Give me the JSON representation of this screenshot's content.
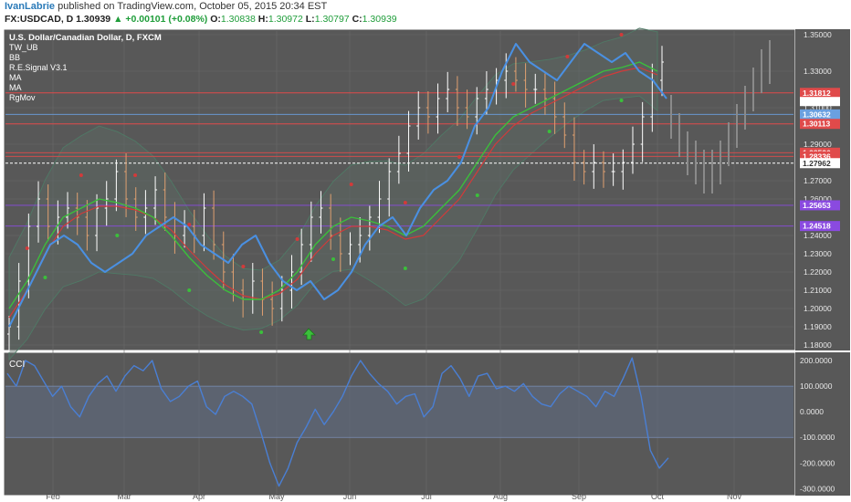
{
  "header": {
    "author": "IvanLabrie",
    "published": " published on TradingView.com, October 05, 2015 20:34 EST",
    "symbol": "FX:USDCAD, D",
    "price": "1.30939",
    "change_arrow": "▲",
    "change": "+0.00101 (+0.08%)",
    "open_label": "O:",
    "open": "1.30838",
    "high_label": "H:",
    "high": "1.30972",
    "low_label": "L:",
    "low": "1.30797",
    "close_label": "C:",
    "close": "1.30939"
  },
  "legend": [
    "U.S. Dollar/Canadian Dollar, D, FXCM",
    "TW_UB",
    "BB",
    "R.E.Signal V3.1",
    "MA",
    "MA",
    "RgMov"
  ],
  "colors": {
    "panel_bg": "#585858",
    "frame": "#ffffff",
    "grid": "#6a6a6a",
    "price_line": "#4a90e2",
    "ma_green": "#3bbf3b",
    "ma_red": "#d23a3a",
    "bb": "#4f7a66",
    "cci": "#4a7fd4",
    "cci_band": "#5f6b80",
    "candle_up": "#ffffff",
    "candle_down": "#e0a070",
    "hline_red": "#e04a4a",
    "hline_purple": "#8a4ae0",
    "hline_blue": "#6aa0e0"
  },
  "chart_data": [
    {
      "type": "candlestick",
      "title": "U.S. Dollar/Canadian Dollar, D, FXCM",
      "x_ticks": [
        "Feb",
        "Mar",
        "Apr",
        "May",
        "Jun",
        "Jul",
        "Aug",
        "Sep",
        "Oct",
        "Nov"
      ],
      "y_ticks": [
        "1.35000",
        "1.33000",
        "1.31000",
        "1.29000",
        "1.27000",
        "1.26000",
        "1.24000",
        "1.23000",
        "1.22000",
        "1.21000",
        "1.20000",
        "1.19000",
        "1.18000"
      ],
      "ylim": [
        1.178,
        1.352
      ],
      "close_series": [
        1.19,
        1.215,
        1.245,
        1.26,
        1.245,
        1.25,
        1.255,
        1.25,
        1.24,
        1.255,
        1.26,
        1.275,
        1.26,
        1.25,
        1.255,
        1.265,
        1.25,
        1.24,
        1.245,
        1.24,
        1.255,
        1.235,
        1.22,
        1.21,
        1.205,
        1.215,
        1.205,
        1.2,
        1.21,
        1.22,
        1.235,
        1.25,
        1.255,
        1.24,
        1.23,
        1.235,
        1.24,
        1.25,
        1.26,
        1.275,
        1.285,
        1.3,
        1.31,
        1.305,
        1.315,
        1.32,
        1.31,
        1.305,
        1.315,
        1.32,
        1.325,
        1.33,
        1.325,
        1.32,
        1.32,
        1.315,
        1.305,
        1.295,
        1.28,
        1.275,
        1.28,
        1.275,
        1.275,
        1.28,
        1.29,
        1.305,
        1.325,
        1.335
      ],
      "price_line": [
        1.19,
        1.205,
        1.22,
        1.235,
        1.24,
        1.235,
        1.225,
        1.22,
        1.225,
        1.23,
        1.24,
        1.245,
        1.25,
        1.245,
        1.235,
        1.23,
        1.225,
        1.235,
        1.24,
        1.225,
        1.215,
        1.21,
        1.215,
        1.205,
        1.21,
        1.22,
        1.235,
        1.245,
        1.25,
        1.24,
        1.255,
        1.265,
        1.27,
        1.28,
        1.3,
        1.31,
        1.33,
        1.345,
        1.335,
        1.33,
        1.325,
        1.335,
        1.345,
        1.34,
        1.335,
        1.34,
        1.33,
        1.325,
        1.315
      ],
      "ma_green": [
        1.2,
        1.215,
        1.235,
        1.25,
        1.255,
        1.26,
        1.258,
        1.255,
        1.25,
        1.24,
        1.228,
        1.218,
        1.21,
        1.205,
        1.205,
        1.21,
        1.22,
        1.235,
        1.245,
        1.25,
        1.248,
        1.245,
        1.24,
        1.245,
        1.255,
        1.265,
        1.28,
        1.295,
        1.305,
        1.31,
        1.315,
        1.32,
        1.325,
        1.33,
        1.332,
        1.335,
        1.33
      ],
      "ma_red": [
        1.195,
        1.21,
        1.23,
        1.245,
        1.252,
        1.256,
        1.256,
        1.254,
        1.25,
        1.243,
        1.232,
        1.222,
        1.213,
        1.207,
        1.205,
        1.208,
        1.216,
        1.23,
        1.24,
        1.245,
        1.245,
        1.243,
        1.238,
        1.24,
        1.25,
        1.26,
        1.275,
        1.29,
        1.3,
        1.307,
        1.312,
        1.317,
        1.322,
        1.327,
        1.33,
        1.332,
        1.328
      ],
      "horizontal_levels": [
        {
          "label": "1.31812",
          "value": 1.31812,
          "color": "#e04a4a"
        },
        {
          "label": "1.30632",
          "value": 1.30632,
          "color": "#6aa0e0"
        },
        {
          "label": "1.30113",
          "value": 1.30113,
          "color": "#e04a4a"
        },
        {
          "label": "1.28536",
          "value": 1.28536,
          "color": "#e04a4a"
        },
        {
          "label": "1.28336",
          "value": 1.28336,
          "color": "#e04a4a"
        },
        {
          "label": "1.27962",
          "value": 1.27962,
          "color": "#ffffff"
        },
        {
          "label": "1.25653",
          "value": 1.25653,
          "color": "#8a4ae0"
        },
        {
          "label": "1.24518",
          "value": 1.24518,
          "color": "#8a4ae0"
        }
      ],
      "axis_price_label": "1.30939"
    },
    {
      "type": "line",
      "title": "CCI",
      "y_ticks": [
        "200.0000",
        "100.0000",
        "0.0000",
        "-100.0000",
        "-200.0000",
        "-300.0000"
      ],
      "ylim": [
        -320,
        225
      ],
      "band": [
        -100,
        100
      ],
      "values": [
        150,
        100,
        200,
        180,
        120,
        60,
        100,
        20,
        -20,
        60,
        110,
        140,
        80,
        140,
        180,
        160,
        200,
        90,
        40,
        60,
        100,
        120,
        20,
        -10,
        60,
        80,
        60,
        30,
        -80,
        -200,
        -290,
        -220,
        -120,
        -60,
        10,
        -50,
        0,
        60,
        140,
        200,
        150,
        110,
        80,
        30,
        60,
        70,
        -20,
        20,
        150,
        180,
        130,
        60,
        140,
        150,
        90,
        100,
        80,
        110,
        60,
        30,
        20,
        70,
        100,
        80,
        60,
        20,
        80,
        60,
        130,
        210,
        60,
        -150,
        -220,
        -180
      ]
    }
  ]
}
